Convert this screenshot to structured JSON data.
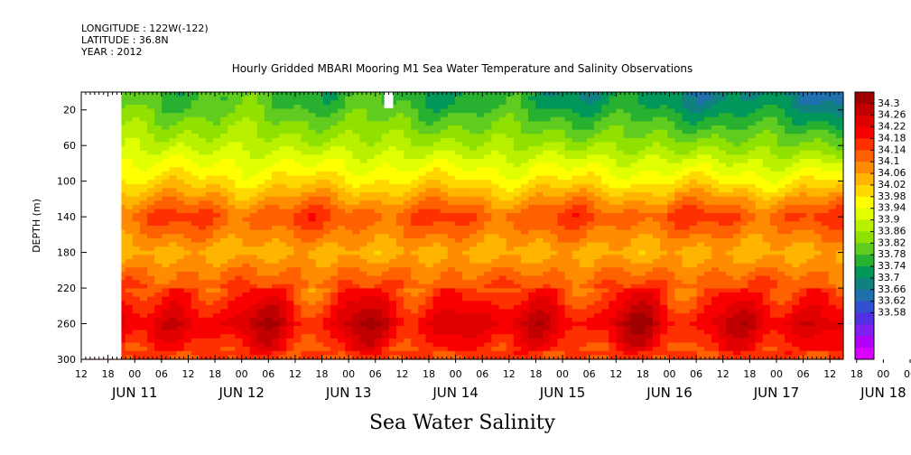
{
  "header": {
    "longitude": "LONGITUDE : 122W(-122)",
    "latitude": "LATITUDE : 36.8N",
    "year": "YEAR : 2012"
  },
  "chart_data": {
    "type": "heatmap",
    "title": "Hourly Gridded MBARI Mooring M1 Sea Water Temperature and Salinity Observations",
    "xlabel": "Sea Water Salinity",
    "ylabel": "DEPTH (m)",
    "x_range": [
      "2012-06-11T12:00",
      "2012-06-18T15:00"
    ],
    "x_hour_ticks": [
      "12",
      "18",
      "00",
      "06",
      "12",
      "18",
      "00",
      "06",
      "12",
      "18",
      "00",
      "06",
      "12",
      "18",
      "00",
      "06",
      "12",
      "18",
      "00",
      "06",
      "12",
      "18",
      "00",
      "06",
      "12",
      "18",
      "00",
      "06",
      "12",
      "18",
      "00",
      "06",
      "12"
    ],
    "x_day_labels": [
      "JUN 11",
      "JUN 12",
      "JUN 13",
      "JUN 14",
      "JUN 15",
      "JUN 16",
      "JUN 17",
      "JUN 18"
    ],
    "y_range": [
      0,
      300
    ],
    "y_reversed": true,
    "y_ticks": [
      20,
      60,
      100,
      140,
      180,
      220,
      260,
      300
    ],
    "colorbar_min": 33.56,
    "colorbar_max": 34.3,
    "colorbar_levels": [
      "34.3",
      "34.26",
      "34.22",
      "34.18",
      "34.14",
      "34.1",
      "34.06",
      "34.02",
      "33.98",
      "33.94",
      "33.9",
      "33.86",
      "33.82",
      "33.78",
      "33.74",
      "33.7",
      "33.66",
      "33.62",
      "33.58"
    ],
    "colorbar_colors": [
      "#a00000",
      "#c00000",
      "#e00000",
      "#f80000",
      "#ff3000",
      "#ff6000",
      "#ff8c00",
      "#ffb400",
      "#ffd800",
      "#ffff00",
      "#e0ff00",
      "#b8f000",
      "#90e000",
      "#60cc20",
      "#28b030",
      "#00985a",
      "#108080",
      "#2070b0",
      "#3050d0",
      "#5030e0",
      "#8020f0",
      "#b000f8",
      "#d800ff"
    ],
    "missing_data": [
      {
        "time": [
          "2012-06-11T12:00",
          "2012-06-11T21:00"
        ],
        "depth": [
          0,
          300
        ]
      },
      {
        "time": [
          "2012-06-14T08:00",
          "2012-06-14T10:00"
        ],
        "depth": [
          0,
          18
        ]
      }
    ],
    "depth_profile": [
      {
        "depth": 10,
        "salinity": 33.86
      },
      {
        "depth": 60,
        "salinity": 33.94
      },
      {
        "depth": 100,
        "salinity": 34.02
      },
      {
        "depth": 140,
        "salinity": 34.14
      },
      {
        "depth": 180,
        "salinity": 34.06
      },
      {
        "depth": 220,
        "salinity": 34.14
      },
      {
        "depth": 260,
        "salinity": 34.22
      },
      {
        "depth": 300,
        "salinity": 34.14
      }
    ]
  }
}
